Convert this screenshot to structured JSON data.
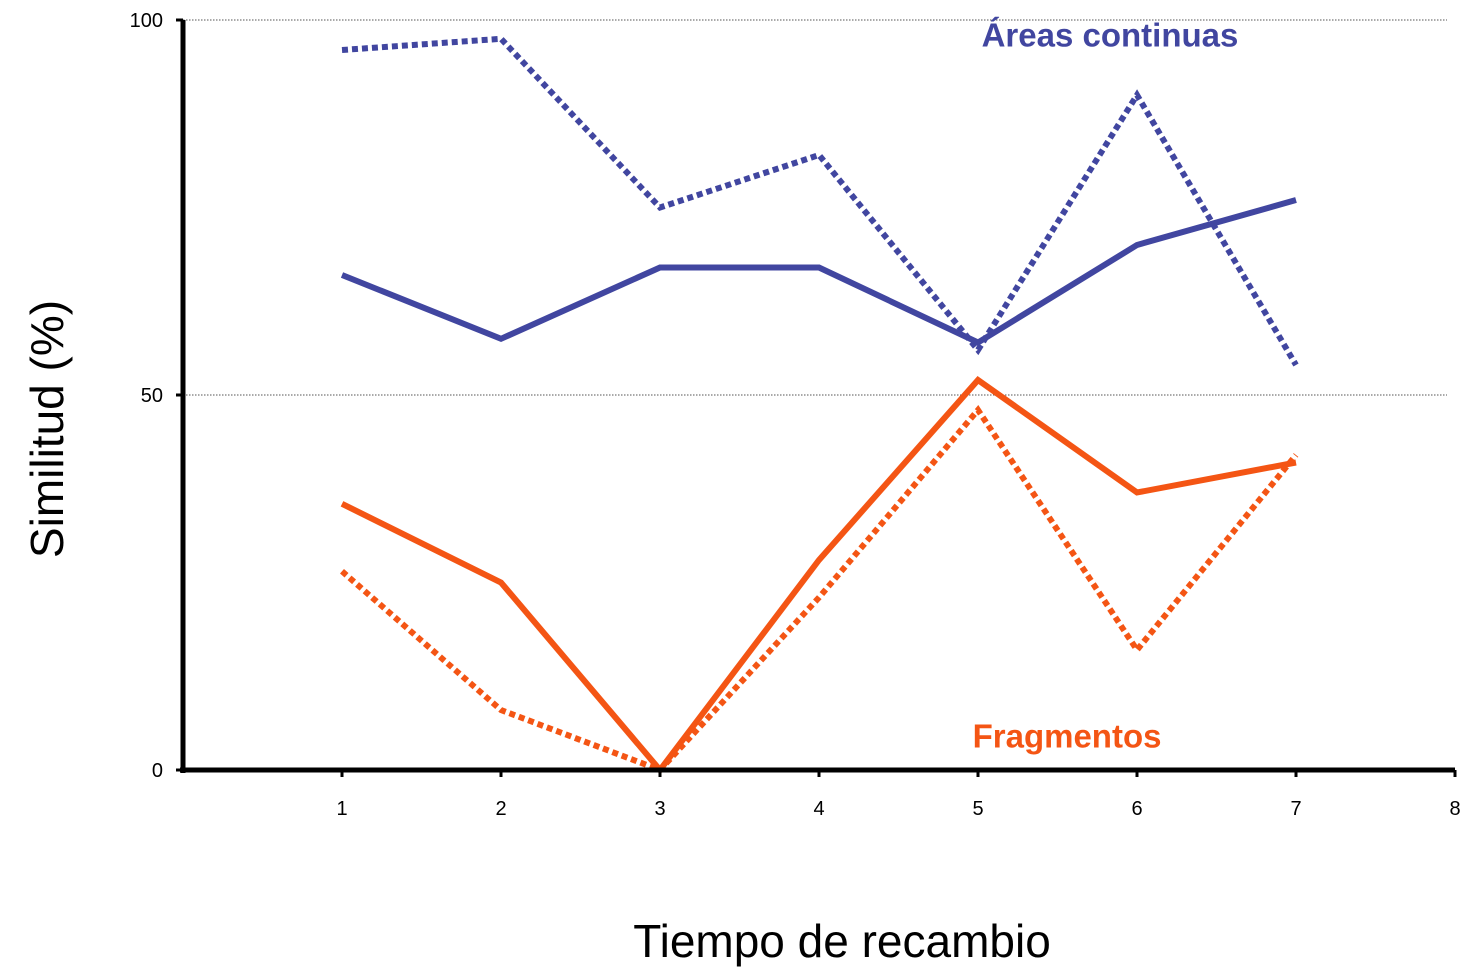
{
  "chart_data": {
    "type": "line",
    "title": "",
    "xlabel": "Tiempo de recambio",
    "ylabel": "Similitud  (%)",
    "xlim": [
      0,
      8
    ],
    "ylim": [
      0,
      100
    ],
    "x_ticks": [
      1,
      2,
      3,
      4,
      5,
      6,
      7,
      8
    ],
    "y_ticks": [
      0,
      50,
      100
    ],
    "grid": {
      "horizontal": true,
      "style": "dotted"
    },
    "x": [
      1,
      2,
      3,
      4,
      5,
      6,
      7
    ],
    "series": [
      {
        "group": "continuas",
        "style": "dotted",
        "color": "#4146a0",
        "values": [
          96,
          97.5,
          75,
          82,
          56,
          90,
          54
        ]
      },
      {
        "group": "continuas",
        "style": "solid",
        "color": "#4146a0",
        "values": [
          66,
          57.5,
          67,
          67,
          57,
          70,
          76
        ]
      },
      {
        "group": "fragmentos",
        "style": "solid",
        "color": "#f45514",
        "values": [
          35.5,
          25,
          0,
          28,
          52,
          37,
          41
        ]
      },
      {
        "group": "fragmentos",
        "style": "dotted",
        "color": "#f45514",
        "values": [
          26.5,
          8,
          0,
          23,
          48,
          16,
          42
        ]
      }
    ],
    "annotations": [
      {
        "text": "Áreas continuas",
        "color": "#4146a0",
        "at": {
          "x": 5.83,
          "y": 96.5
        }
      },
      {
        "text": "Fragmentos",
        "color": "#f45514",
        "at": {
          "x": 5.56,
          "y": 3
        }
      }
    ]
  }
}
